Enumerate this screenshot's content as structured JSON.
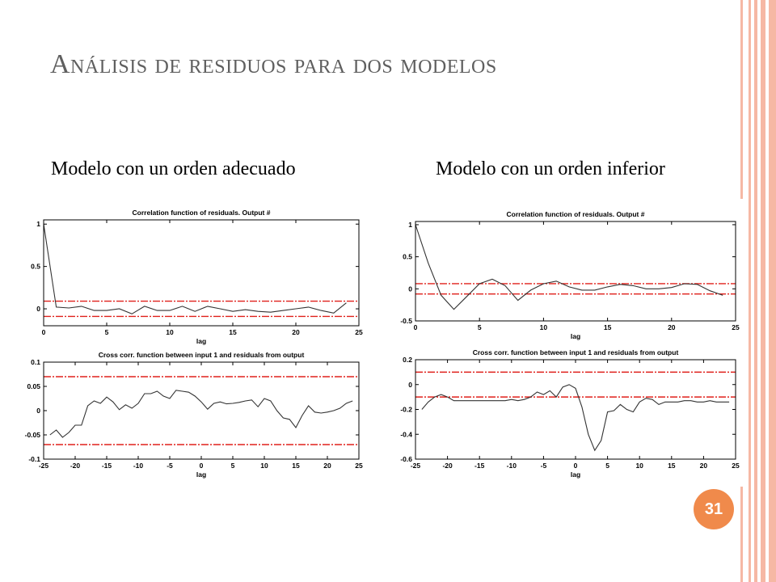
{
  "slide": {
    "title": "Análisis de residuos para dos modelos",
    "subtitle_left": "Modelo con un orden adecuado",
    "subtitle_right": "Modelo con un orden inferior",
    "page_number": "31",
    "accent_color": "#f08a4b",
    "stripe_color": "#f6b8a4"
  },
  "chart_data": [
    {
      "type": "line",
      "title": "Correlation function of residuals. Output #",
      "xlabel": "lag",
      "xlim": [
        0,
        25
      ],
      "ylim": [
        -0.2,
        1.05
      ],
      "xticks": [
        0,
        5,
        10,
        15,
        20,
        25
      ],
      "yticks": [
        0,
        0.5,
        1
      ],
      "ytick_labels": [
        "0",
        "0.5",
        "1"
      ],
      "series": [
        {
          "x": [
            0,
            1,
            2,
            3,
            4,
            5,
            6,
            7,
            8,
            9,
            10,
            11,
            12,
            13,
            14,
            15,
            16,
            17,
            18,
            19,
            20,
            21,
            22,
            23,
            24
          ],
          "y": [
            1,
            0.02,
            0.01,
            0.03,
            -0.02,
            -0.02,
            0.0,
            -0.06,
            0.03,
            -0.02,
            -0.02,
            0.03,
            -0.03,
            0.03,
            0.0,
            -0.03,
            -0.01,
            -0.03,
            -0.04,
            -0.02,
            0.0,
            0.02,
            -0.02,
            -0.05,
            0.07
          ]
        }
      ],
      "confidence_bounds": [
        0.09,
        -0.09
      ]
    },
    {
      "type": "line",
      "title": "Cross corr. function between input 1 and residuals from output",
      "xlabel": "lag",
      "xlim": [
        -25,
        25
      ],
      "ylim": [
        -0.1,
        0.1
      ],
      "xticks": [
        -25,
        -20,
        -15,
        -10,
        -5,
        0,
        5,
        10,
        15,
        20,
        25
      ],
      "yticks": [
        -0.1,
        -0.05,
        0,
        0.05,
        0.1
      ],
      "ytick_labels": [
        "-0.1",
        "-0.05",
        "0",
        "0.05",
        "0.1"
      ],
      "series": [
        {
          "x": [
            -24,
            -23,
            -22,
            -21,
            -20,
            -19,
            -18,
            -17,
            -16,
            -15,
            -14,
            -13,
            -12,
            -11,
            -10,
            -9,
            -8,
            -7,
            -6,
            -5,
            -4,
            -3,
            -2,
            -1,
            0,
            1,
            2,
            3,
            4,
            5,
            6,
            7,
            8,
            9,
            10,
            11,
            12,
            13,
            14,
            15,
            16,
            17,
            18,
            19,
            20,
            21,
            22,
            23,
            24
          ],
          "y": [
            -0.05,
            -0.04,
            -0.055,
            -0.045,
            -0.03,
            -0.03,
            0.01,
            0.02,
            0.015,
            0.028,
            0.018,
            0.002,
            0.012,
            0.005,
            0.015,
            0.035,
            0.035,
            0.04,
            0.03,
            0.025,
            0.042,
            0.04,
            0.038,
            0.03,
            0.018,
            0.003,
            0.015,
            0.018,
            0.014,
            0.015,
            0.017,
            0.02,
            0.022,
            0.008,
            0.025,
            0.02,
            0.0,
            -0.015,
            -0.018,
            -0.035,
            -0.01,
            0.01,
            -0.003,
            -0.005,
            -0.003,
            0.0,
            0.005,
            0.015,
            0.02
          ]
        }
      ],
      "confidence_bounds": [
        0.07,
        -0.07
      ]
    },
    {
      "type": "line",
      "title": "Correlation function of residuals. Output #",
      "xlabel": "lag",
      "xlim": [
        0,
        25
      ],
      "ylim": [
        -0.5,
        1.05
      ],
      "xticks": [
        0,
        5,
        10,
        15,
        20,
        25
      ],
      "yticks": [
        -0.5,
        0,
        0.5,
        1
      ],
      "ytick_labels": [
        "-0.5",
        "0",
        "0.5",
        "1"
      ],
      "series": [
        {
          "x": [
            0,
            1,
            2,
            3,
            4,
            5,
            6,
            7,
            8,
            9,
            10,
            11,
            12,
            13,
            14,
            15,
            16,
            17,
            18,
            19,
            20,
            21,
            22,
            23,
            24
          ],
          "y": [
            1,
            0.4,
            -0.1,
            -0.32,
            -0.12,
            0.08,
            0.15,
            0.05,
            -0.18,
            -0.02,
            0.08,
            0.12,
            0.03,
            -0.02,
            -0.02,
            0.03,
            0.07,
            0.05,
            0.0,
            0.0,
            0.02,
            0.08,
            0.07,
            -0.03,
            -0.1
          ]
        }
      ],
      "confidence_bounds": [
        0.08,
        -0.08
      ]
    },
    {
      "type": "line",
      "title": "Cross corr. function between input 1 and residuals from output",
      "xlabel": "lag",
      "xlim": [
        -25,
        25
      ],
      "ylim": [
        -0.6,
        0.2
      ],
      "xticks": [
        -25,
        -20,
        -15,
        -10,
        -5,
        0,
        5,
        10,
        15,
        20,
        25
      ],
      "yticks": [
        -0.6,
        -0.4,
        -0.2,
        0,
        0.2
      ],
      "ytick_labels": [
        "-0.6",
        "-0.4",
        "-0.2",
        "0",
        "0.2"
      ],
      "series": [
        {
          "x": [
            -24,
            -23,
            -22,
            -21,
            -20,
            -19,
            -18,
            -17,
            -16,
            -15,
            -14,
            -13,
            -12,
            -11,
            -10,
            -9,
            -8,
            -7,
            -6,
            -5,
            -4,
            -3,
            -2,
            -1,
            0,
            1,
            2,
            3,
            4,
            5,
            6,
            7,
            8,
            9,
            10,
            11,
            12,
            13,
            14,
            15,
            16,
            17,
            18,
            19,
            20,
            21,
            22,
            23,
            24
          ],
          "y": [
            -0.2,
            -0.14,
            -0.1,
            -0.08,
            -0.1,
            -0.13,
            -0.13,
            -0.13,
            -0.13,
            -0.13,
            -0.13,
            -0.13,
            -0.13,
            -0.13,
            -0.12,
            -0.13,
            -0.12,
            -0.1,
            -0.06,
            -0.08,
            -0.05,
            -0.1,
            -0.02,
            0.0,
            -0.03,
            -0.18,
            -0.4,
            -0.53,
            -0.45,
            -0.22,
            -0.21,
            -0.16,
            -0.2,
            -0.22,
            -0.14,
            -0.11,
            -0.12,
            -0.16,
            -0.14,
            -0.14,
            -0.14,
            -0.13,
            -0.13,
            -0.14,
            -0.14,
            -0.13,
            -0.14,
            -0.14,
            -0.14
          ]
        }
      ],
      "confidence_bounds": [
        0.1,
        -0.1
      ]
    }
  ]
}
